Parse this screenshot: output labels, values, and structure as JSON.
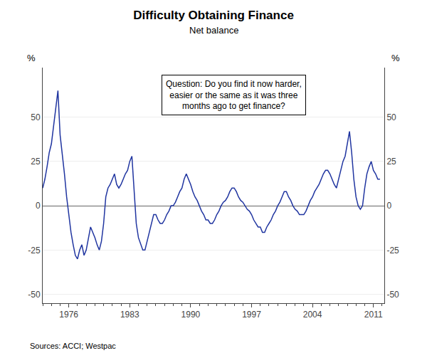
{
  "chart_data": {
    "type": "line",
    "title": "Difficulty Obtaining Finance",
    "subtitle": "Net balance",
    "annotation": "Question: Do you find it now harder,\neasier or the same as it was three\nmonths ago to get finance?",
    "source": "Sources: ACCI; Westpac",
    "ylabel": "%",
    "y2label": "%",
    "x": [
      1973,
      1973.25,
      1973.5,
      1973.75,
      1974,
      1974.25,
      1974.5,
      1974.75,
      1975,
      1975.25,
      1975.5,
      1975.75,
      1976,
      1976.25,
      1976.5,
      1976.75,
      1977,
      1977.25,
      1977.5,
      1977.75,
      1978,
      1978.25,
      1978.5,
      1978.75,
      1979,
      1979.25,
      1979.5,
      1979.75,
      1980,
      1980.25,
      1980.5,
      1980.75,
      1981,
      1981.25,
      1981.5,
      1981.75,
      1982,
      1982.25,
      1982.5,
      1982.75,
      1983,
      1983.25,
      1983.5,
      1983.75,
      1984,
      1984.25,
      1984.5,
      1984.75,
      1985,
      1985.25,
      1985.5,
      1985.75,
      1986,
      1986.25,
      1986.5,
      1986.75,
      1987,
      1987.25,
      1987.5,
      1987.75,
      1988,
      1988.25,
      1988.5,
      1988.75,
      1989,
      1989.25,
      1989.5,
      1989.75,
      1990,
      1990.25,
      1990.5,
      1990.75,
      1991,
      1991.25,
      1991.5,
      1991.75,
      1992,
      1992.25,
      1992.5,
      1992.75,
      1993,
      1993.25,
      1993.5,
      1993.75,
      1994,
      1994.25,
      1994.5,
      1994.75,
      1995,
      1995.25,
      1995.5,
      1995.75,
      1996,
      1996.25,
      1996.5,
      1996.75,
      1997,
      1997.25,
      1997.5,
      1997.75,
      1998,
      1998.25,
      1998.5,
      1998.75,
      1999,
      1999.25,
      1999.5,
      1999.75,
      2000,
      2000.25,
      2000.5,
      2000.75,
      2001,
      2001.25,
      2001.5,
      2001.75,
      2002,
      2002.25,
      2002.5,
      2002.75,
      2003,
      2003.25,
      2003.5,
      2003.75,
      2004,
      2004.25,
      2004.5,
      2004.75,
      2005,
      2005.25,
      2005.5,
      2005.75,
      2006,
      2006.25,
      2006.5,
      2006.75,
      2007,
      2007.25,
      2007.5,
      2007.75,
      2008,
      2008.25,
      2008.5,
      2008.75,
      2009,
      2009.25,
      2009.5,
      2009.75,
      2010,
      2010.25,
      2010.5,
      2010.75,
      2011,
      2011.25,
      2011.5,
      2011.75
    ],
    "values": [
      10,
      15,
      22,
      30,
      35,
      45,
      57,
      65,
      40,
      30,
      18,
      5,
      -5,
      -15,
      -22,
      -28,
      -30,
      -25,
      -22,
      -28,
      -25,
      -18,
      -12,
      -15,
      -18,
      -22,
      -25,
      -20,
      -10,
      5,
      10,
      12,
      15,
      18,
      12,
      10,
      12,
      15,
      18,
      20,
      25,
      28,
      10,
      -10,
      -18,
      -22,
      -25,
      -25,
      -20,
      -15,
      -10,
      -5,
      -5,
      -8,
      -10,
      -10,
      -8,
      -5,
      -3,
      0,
      0,
      2,
      5,
      8,
      10,
      15,
      18,
      15,
      12,
      8,
      5,
      3,
      0,
      -3,
      -5,
      -8,
      -8,
      -10,
      -10,
      -8,
      -5,
      -3,
      0,
      2,
      3,
      5,
      8,
      10,
      10,
      8,
      5,
      3,
      2,
      0,
      -2,
      -3,
      -5,
      -8,
      -10,
      -12,
      -12,
      -15,
      -15,
      -12,
      -10,
      -8,
      -5,
      -3,
      0,
      2,
      5,
      8,
      8,
      5,
      3,
      0,
      -2,
      -3,
      -5,
      -5,
      -5,
      -3,
      0,
      3,
      5,
      8,
      10,
      12,
      15,
      18,
      20,
      20,
      18,
      15,
      12,
      10,
      15,
      20,
      25,
      28,
      35,
      42,
      30,
      15,
      5,
      0,
      -2,
      0,
      10,
      18,
      22,
      25,
      20,
      18,
      15,
      15
    ],
    "color": "#2035a0",
    "xlim": [
      1973.0,
      2012.25
    ],
    "xticks": [
      1976,
      1983,
      1990,
      1997,
      2004,
      2011
    ],
    "ylim": [
      -55,
      78
    ],
    "yticks": [
      -50,
      -25,
      0,
      25,
      50
    ],
    "y2lim": [
      -55,
      78
    ],
    "y2ticks": [
      -50,
      -25,
      0,
      25,
      50
    ],
    "grid": true
  }
}
